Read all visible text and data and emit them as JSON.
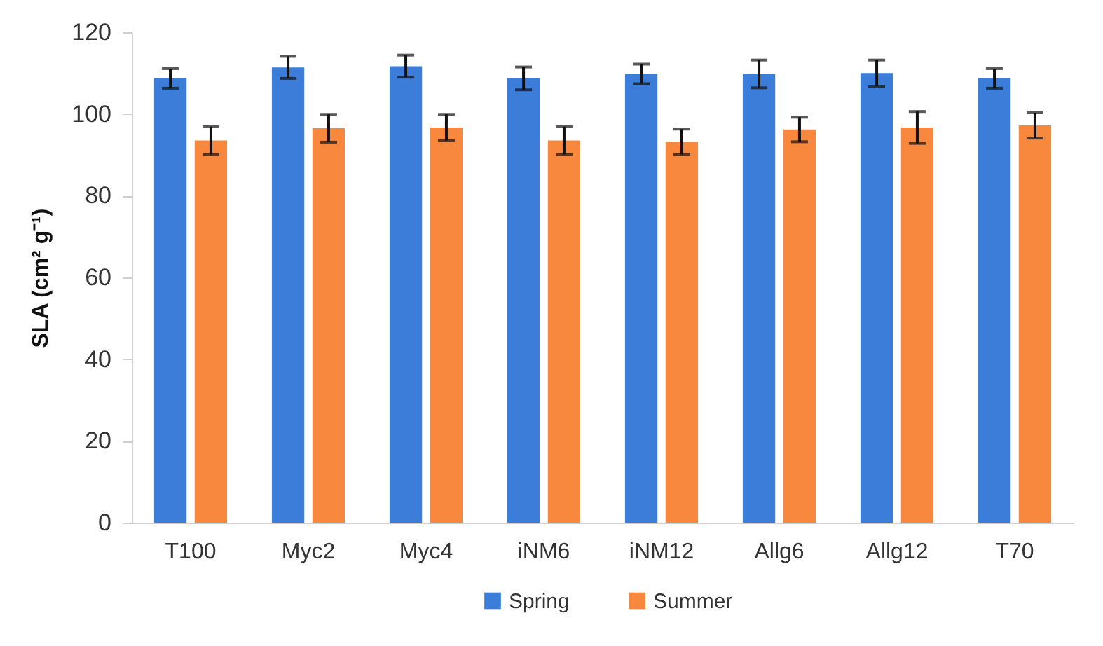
{
  "chart_data": {
    "type": "bar",
    "ylabel": "SLA (cm² g⁻¹)",
    "categories": [
      "T100",
      "Myc2",
      "Myc4",
      "iNM6",
      "iNM12",
      "Allg6",
      "Allg12",
      "T70"
    ],
    "series": [
      {
        "name": "Spring",
        "color": "#3b7dd8",
        "values": [
          108.7,
          111.4,
          111.7,
          108.7,
          109.8,
          109.8,
          110.0,
          108.7
        ],
        "errors": [
          2.4,
          2.7,
          2.7,
          2.8,
          2.4,
          3.4,
          3.2,
          2.4
        ]
      },
      {
        "name": "Summer",
        "color": "#f7883e",
        "values": [
          93.5,
          96.5,
          96.7,
          93.5,
          93.2,
          96.2,
          96.7,
          97.2
        ],
        "errors": [
          3.4,
          3.4,
          3.2,
          3.4,
          3.1,
          3.0,
          3.9,
          3.1
        ]
      }
    ],
    "ylim": [
      0,
      120
    ],
    "yticks": [
      0,
      20,
      40,
      60,
      80,
      100,
      120
    ],
    "legend": "bottom"
  }
}
